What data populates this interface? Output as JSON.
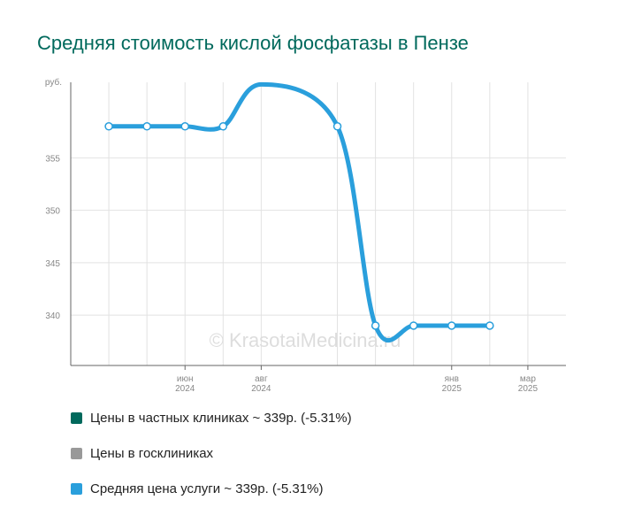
{
  "chart_data": {
    "type": "line",
    "title": "Средняя стоимость кислой фосфатазы в Пензе",
    "y_unit": "руб.",
    "ylim": [
      335.2,
      362.2
    ],
    "yticks": [
      340,
      345,
      350,
      355
    ],
    "x_dates": [
      "2024-04",
      "2024-05",
      "2024-06",
      "2024-07",
      "2024-08",
      "2024-10",
      "2024-11",
      "2024-12",
      "2025-01",
      "2025-02",
      "2025-03"
    ],
    "x_ticks": [
      {
        "date": "2024-06",
        "label1": "июн",
        "label2": "2024"
      },
      {
        "date": "2024-08",
        "label1": "авг",
        "label2": "2024"
      },
      {
        "date": "2025-01",
        "label1": "янв",
        "label2": "2025"
      },
      {
        "date": "2025-03",
        "label1": "мар",
        "label2": "2025"
      }
    ],
    "grid": true,
    "watermark": "© KrasotaiMedicina.ru",
    "series": [
      {
        "name": "Средняя цена услуги",
        "color": "#2a9fdc",
        "points": [
          {
            "date": "2024-04",
            "value": 358,
            "marker": true
          },
          {
            "date": "2024-05",
            "value": 358,
            "marker": true
          },
          {
            "date": "2024-06",
            "value": 358,
            "marker": true
          },
          {
            "date": "2024-07",
            "value": 358,
            "marker": true
          },
          {
            "date": "2024-08",
            "value": 362,
            "marker": false
          },
          {
            "date": "2024-10",
            "value": 358,
            "marker": true
          },
          {
            "date": "2024-11",
            "value": 339,
            "marker": true
          },
          {
            "date": "2024-12",
            "value": 339,
            "marker": true
          },
          {
            "date": "2025-01",
            "value": 339,
            "marker": true
          },
          {
            "date": "2025-02",
            "value": 339,
            "marker": true
          }
        ]
      }
    ]
  },
  "legend": [
    {
      "label": "Цены в частных клиниках ~ 339р. (-5.31%)",
      "color": "#00695c"
    },
    {
      "label": "Цены в госклиниках",
      "color": "#999999"
    },
    {
      "label": "Средняя цена услуги ~ 339р. (-5.31%)",
      "color": "#2a9fdc"
    }
  ]
}
